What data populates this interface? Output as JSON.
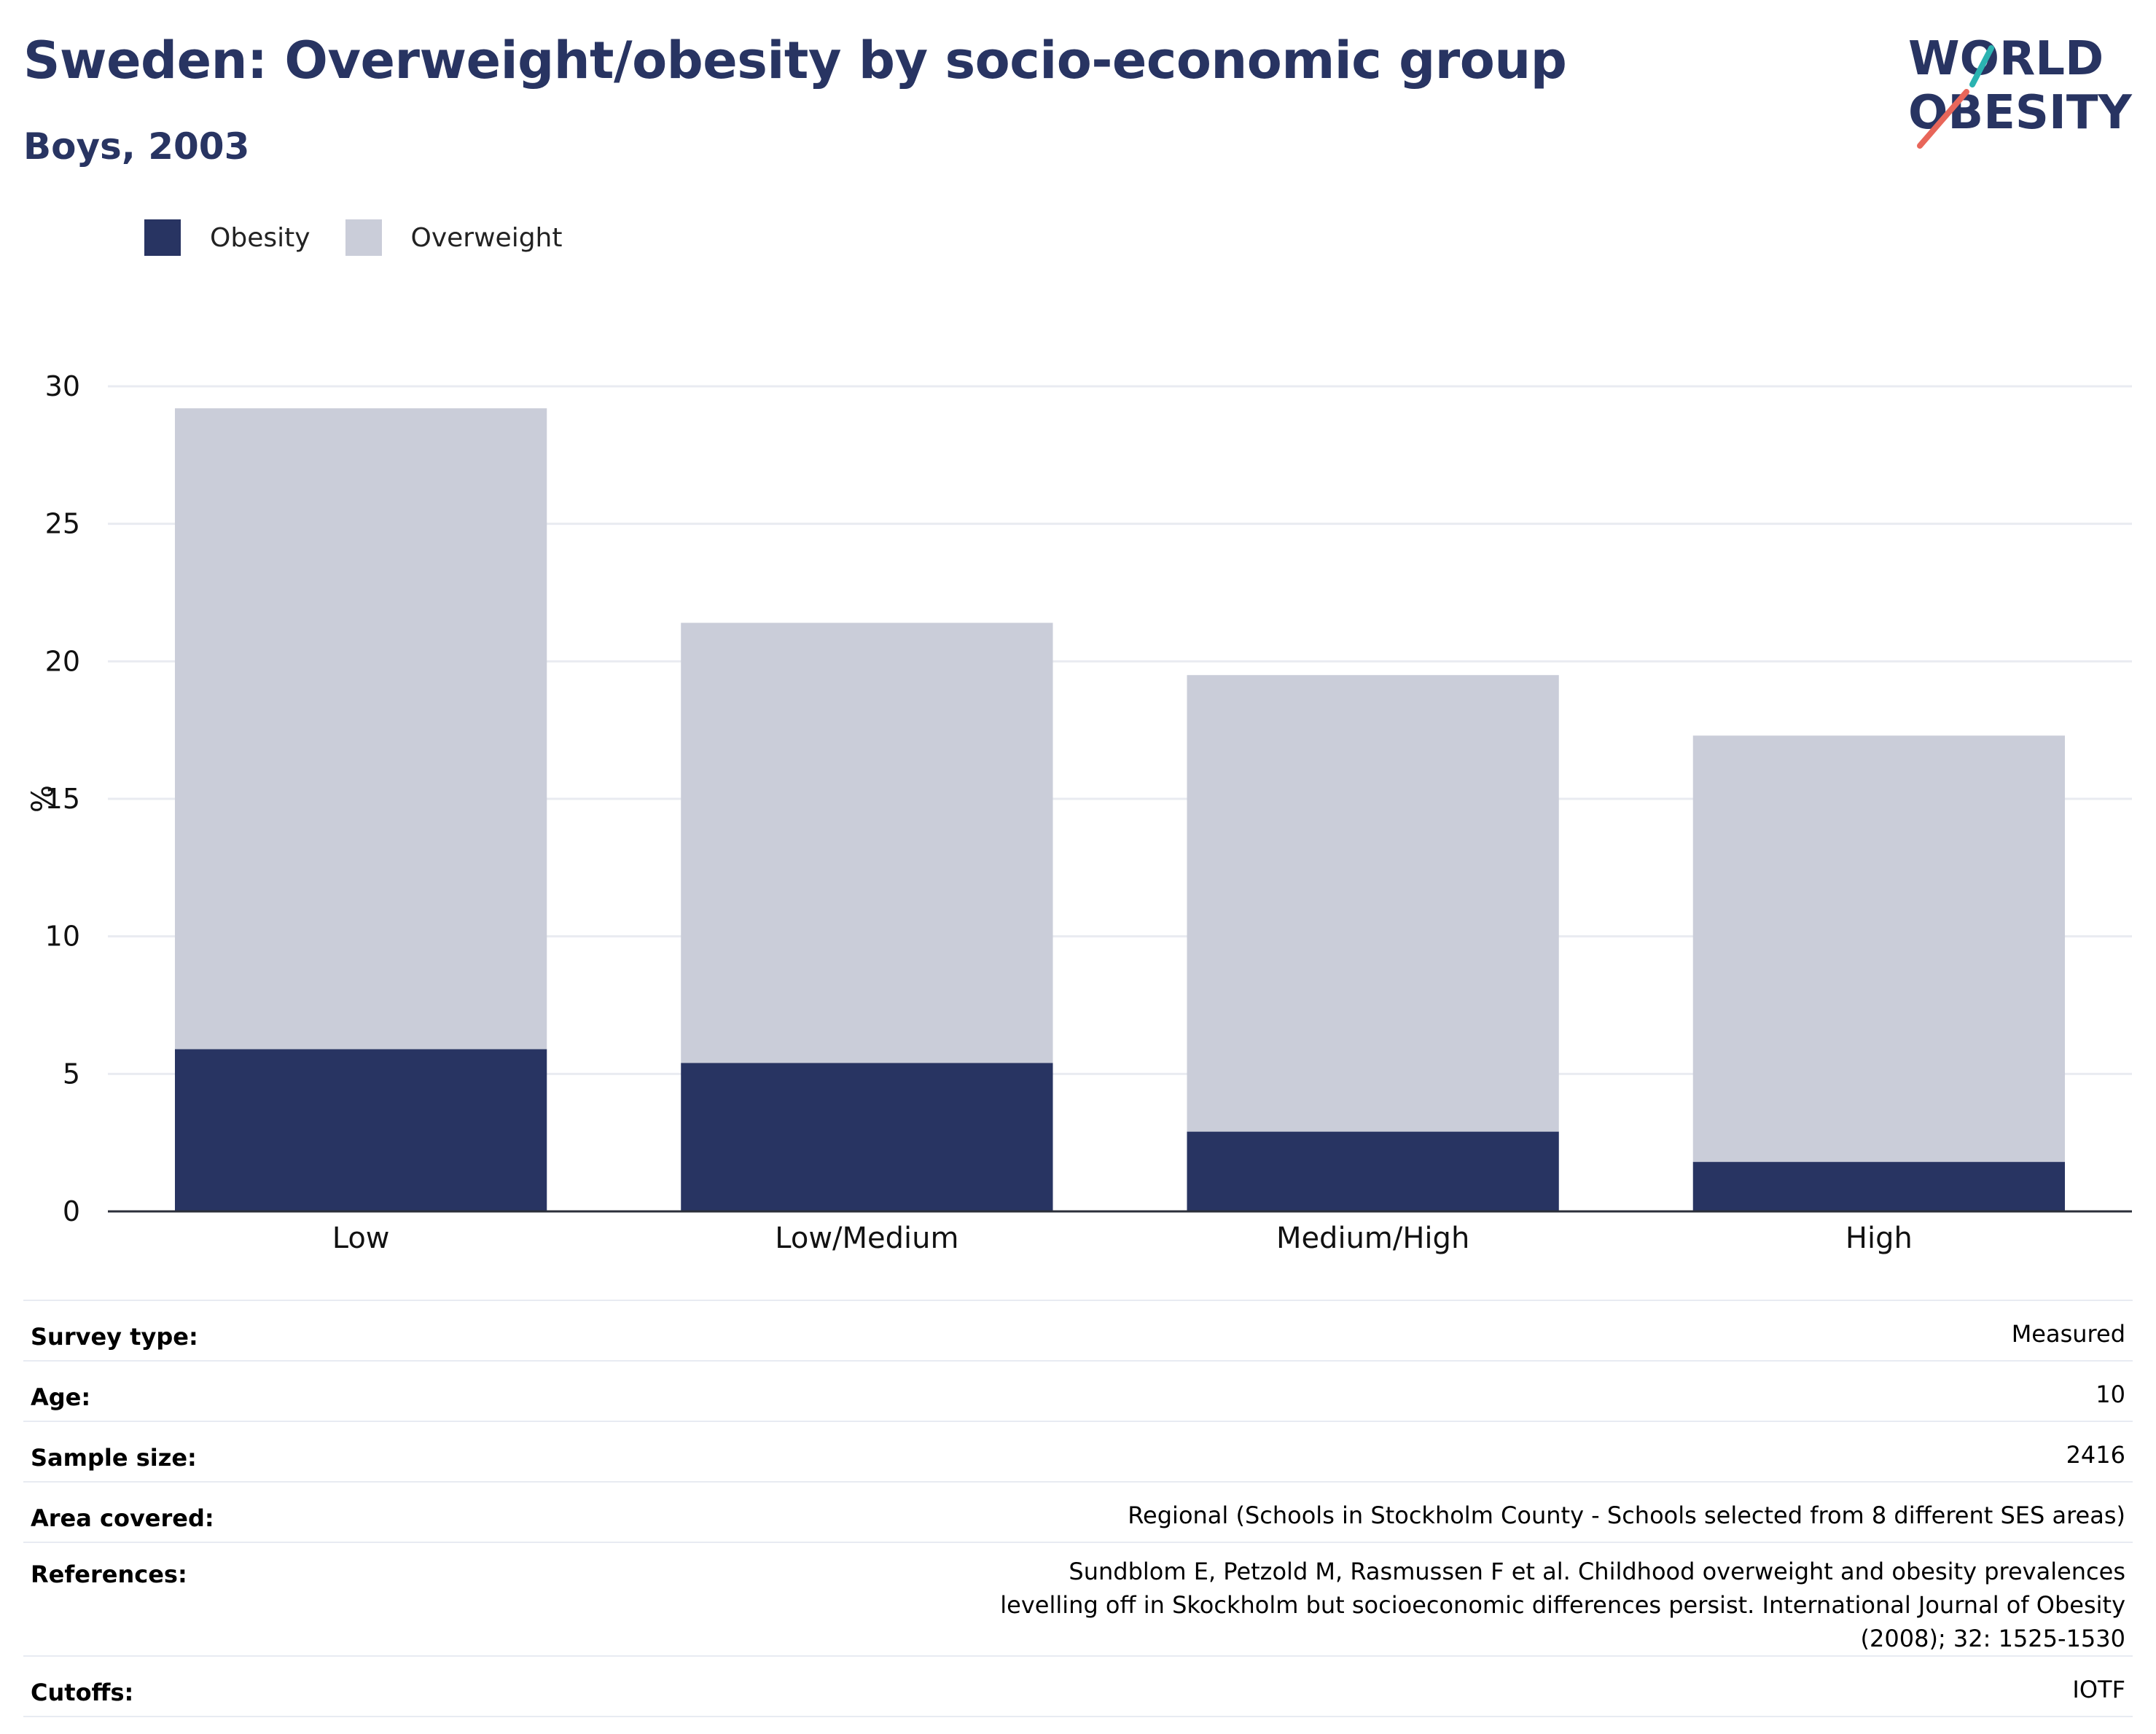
{
  "header": {
    "title": "Sweden: Overweight/obesity by socio-economic group",
    "subtitle": "Boys, 2003"
  },
  "logo": {
    "line1": "WORLD",
    "line2": "OBESITY",
    "accent_teal": "#2bb3b1",
    "accent_red": "#e8665a"
  },
  "legend": [
    {
      "label": "Obesity",
      "color": "#283462"
    },
    {
      "label": "Overweight",
      "color": "#cacdd9"
    }
  ],
  "chart_data": {
    "type": "bar",
    "stacked": true,
    "categories": [
      "Low",
      "Low/Medium",
      "Medium/High",
      "High"
    ],
    "series": [
      {
        "name": "Obesity",
        "color": "#283462",
        "values": [
          5.9,
          5.4,
          2.9,
          1.8
        ]
      },
      {
        "name": "Overweight",
        "color": "#cacdd9",
        "values": [
          23.3,
          16.0,
          16.6,
          15.5
        ]
      }
    ],
    "totals": [
      29.2,
      21.4,
      19.5,
      17.3
    ],
    "ylabel": "%",
    "xlabel": "",
    "ylim": [
      0,
      30
    ],
    "yticks": [
      0,
      5,
      10,
      15,
      20,
      25,
      30
    ],
    "grid": true,
    "legend_position": "top-left"
  },
  "info": [
    {
      "label": "Survey type:",
      "value": "Measured"
    },
    {
      "label": "Age:",
      "value": "10"
    },
    {
      "label": "Sample size:",
      "value": "2416"
    },
    {
      "label": "Area covered:",
      "value": "Regional (Schools in Stockholm County - Schools selected from 8 different SES areas)"
    },
    {
      "label": "References:",
      "value": "Sundblom E, Petzold M, Rasmussen F et al. Childhood overweight and obesity prevalences levelling off in Skockholm but socioeconomic differences persist. International Journal of Obesity (2008); 32: 1525-1530"
    },
    {
      "label": "Cutoffs:",
      "value": "IOTF"
    }
  ]
}
